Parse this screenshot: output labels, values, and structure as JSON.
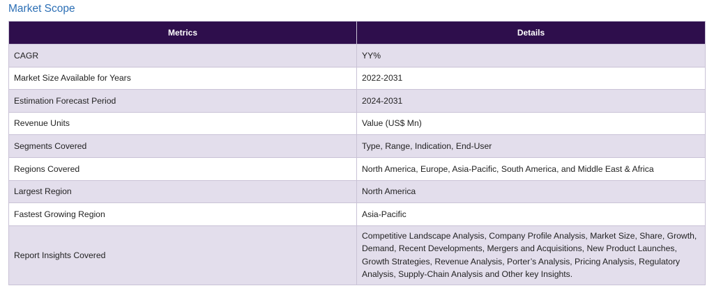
{
  "title": "Market Scope",
  "table": {
    "headers": [
      "Metrics",
      "Details"
    ],
    "rows": [
      {
        "metric": "CAGR",
        "detail": "YY%"
      },
      {
        "metric": "Market Size Available for Years",
        "detail": "2022-2031"
      },
      {
        "metric": "Estimation Forecast Period",
        "detail": "2024-2031"
      },
      {
        "metric": "Revenue Units",
        "detail": "Value (US$ Mn)"
      },
      {
        "metric": "Segments Covered",
        "detail": "Type, Range, Indication, End-User"
      },
      {
        "metric": "Regions Covered",
        "detail": "North America, Europe, Asia-Pacific, South America, and Middle East & Africa"
      },
      {
        "metric": "Largest Region",
        "detail": "North America"
      },
      {
        "metric": "Fastest Growing Region",
        "detail": "Asia-Pacific"
      },
      {
        "metric": "Report Insights Covered",
        "detail": "Competitive Landscape Analysis, Company Profile Analysis, Market Size, Share, Growth, Demand, Recent Developments, Mergers and Acquisitions, New Product Launches, Growth Strategies, Revenue Analysis, Porter’s Analysis, Pricing Analysis, Regulatory Analysis, Supply-Chain Analysis and Other key Insights."
      }
    ]
  }
}
